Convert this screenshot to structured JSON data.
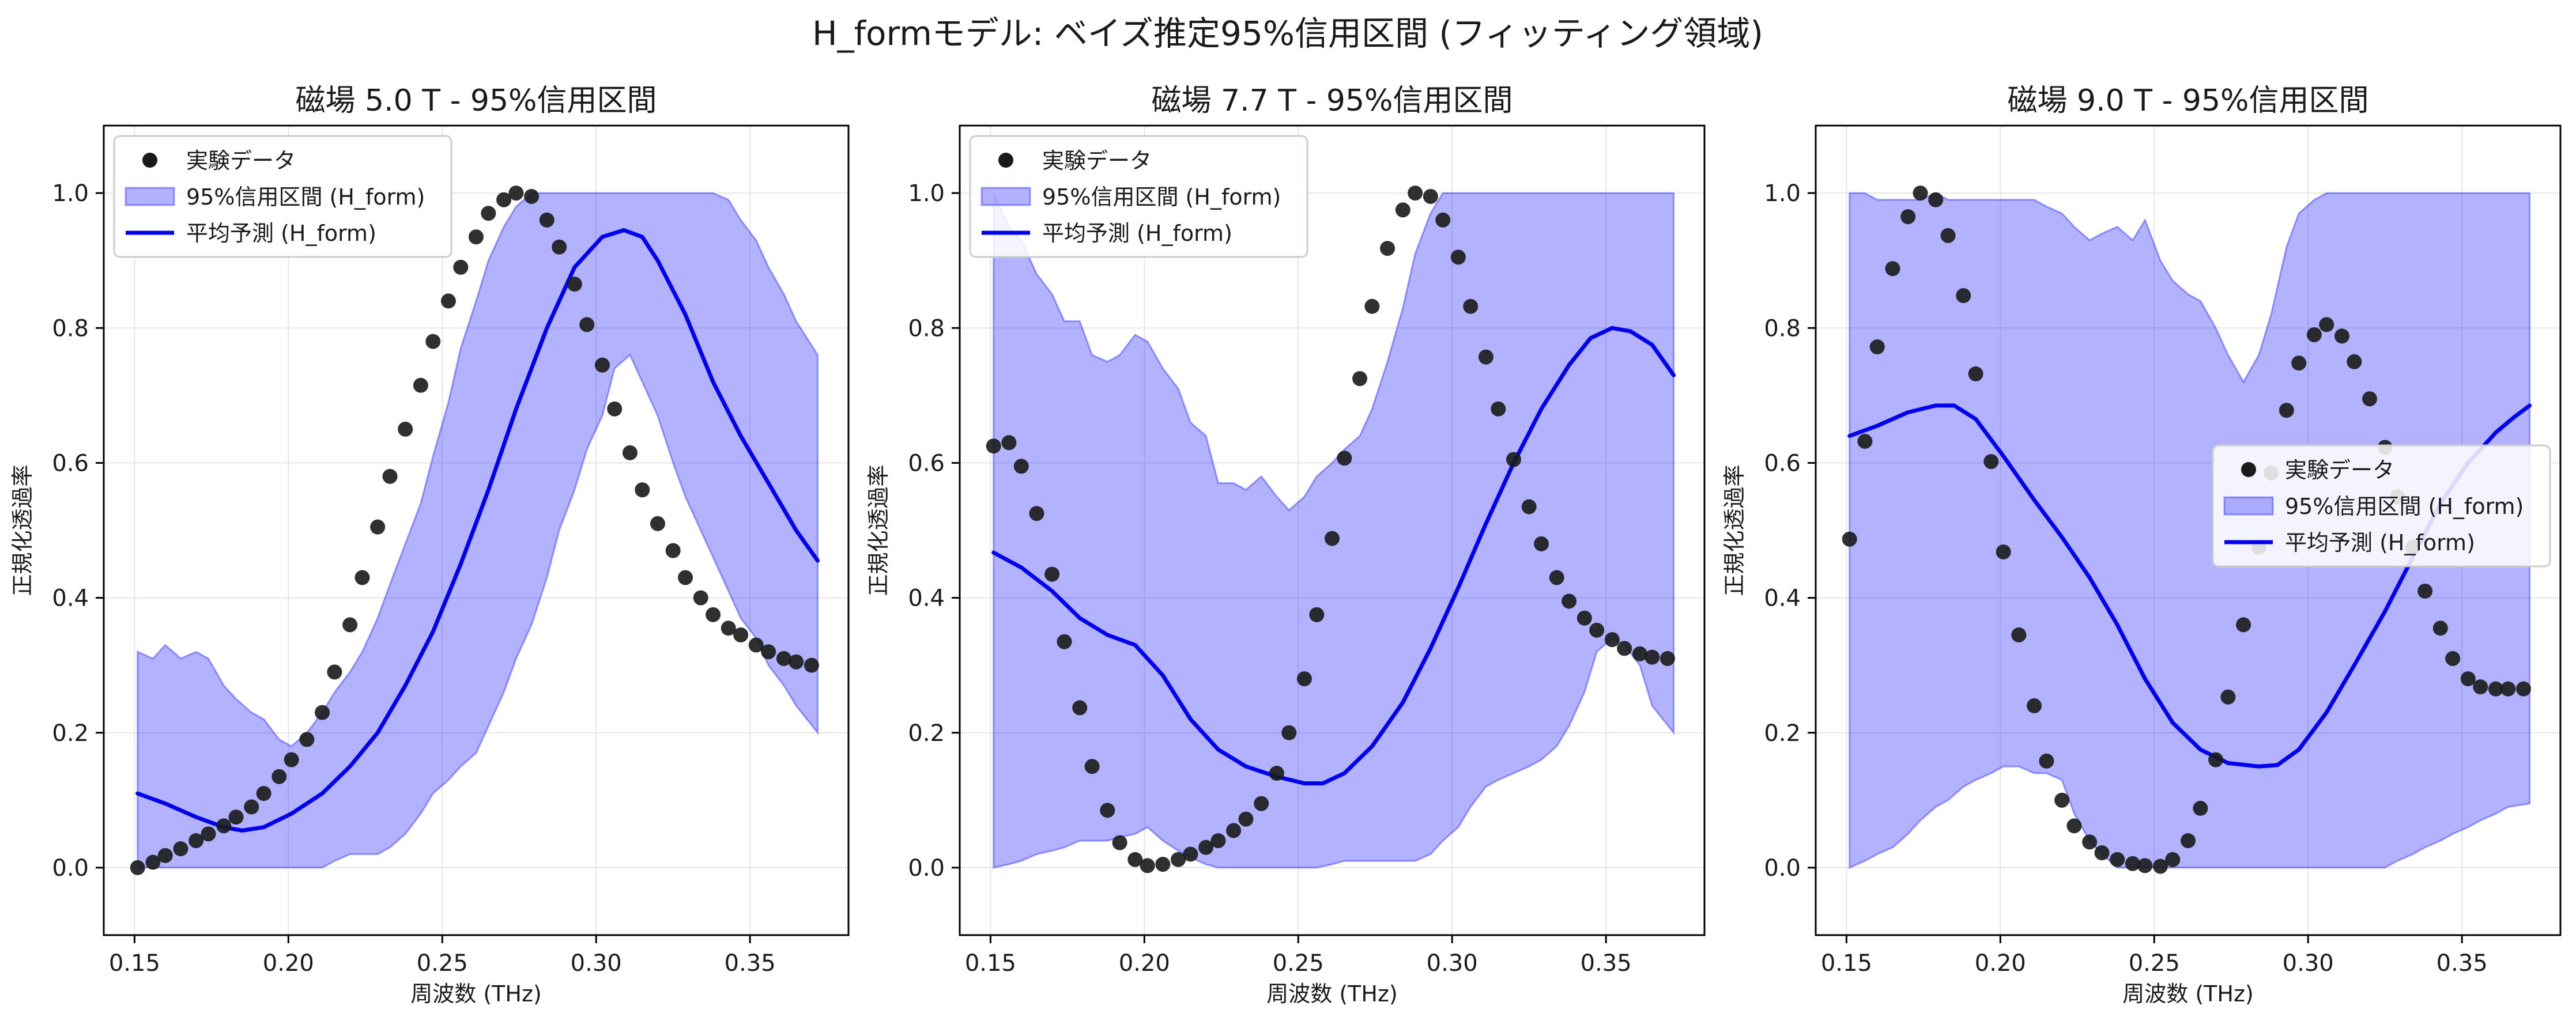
{
  "figure": {
    "suptitle": "H_formモデル: ベイズ推定95%信用区間 (フィッティング領域)"
  },
  "colors": {
    "band_fill": "#0000ff",
    "mean_line": "#0000ee",
    "points": "#1a1a1a",
    "grid": "#e6e6e6",
    "axes": "#000000"
  },
  "chart_data": [
    {
      "type": "scatter+line+area",
      "title": "磁場 5.0 T - 95%信用区間",
      "xlabel": "周波数 (THz)",
      "ylabel": "正規化透過率",
      "xlim": [
        0.14,
        0.382
      ],
      "ylim": [
        -0.1,
        1.1
      ],
      "xticks": [
        "0.15",
        "0.20",
        "0.25",
        "0.30",
        "0.35"
      ],
      "yticks": [
        "0.0",
        "0.2",
        "0.4",
        "0.6",
        "0.8",
        "1.0"
      ],
      "grid": true,
      "legend_position": "upper-left",
      "legend": [
        "実験データ",
        "95%信用区間 (H_form)",
        "平均予測 (H_form)"
      ],
      "experimental": {
        "x": [
          0.151,
          0.156,
          0.16,
          0.165,
          0.17,
          0.174,
          0.179,
          0.183,
          0.188,
          0.192,
          0.197,
          0.201,
          0.206,
          0.211,
          0.215,
          0.22,
          0.224,
          0.229,
          0.233,
          0.238,
          0.243,
          0.247,
          0.252,
          0.256,
          0.261,
          0.265,
          0.27,
          0.274,
          0.279,
          0.284,
          0.288,
          0.293,
          0.297,
          0.302,
          0.306,
          0.311,
          0.315,
          0.32,
          0.325,
          0.329,
          0.334,
          0.338,
          0.343,
          0.347,
          0.352,
          0.356,
          0.361,
          0.365,
          0.37
        ],
        "y": [
          0.0,
          0.008,
          0.018,
          0.028,
          0.04,
          0.05,
          0.062,
          0.075,
          0.09,
          0.11,
          0.135,
          0.16,
          0.19,
          0.23,
          0.29,
          0.36,
          0.43,
          0.505,
          0.58,
          0.65,
          0.715,
          0.78,
          0.84,
          0.89,
          0.935,
          0.97,
          0.99,
          1.0,
          0.995,
          0.96,
          0.92,
          0.865,
          0.805,
          0.745,
          0.68,
          0.615,
          0.56,
          0.51,
          0.47,
          0.43,
          0.4,
          0.375,
          0.355,
          0.345,
          0.33,
          0.32,
          0.31,
          0.305,
          0.3
        ]
      },
      "ci": {
        "x": [
          0.151,
          0.156,
          0.16,
          0.165,
          0.17,
          0.174,
          0.179,
          0.183,
          0.188,
          0.192,
          0.197,
          0.201,
          0.206,
          0.211,
          0.215,
          0.22,
          0.224,
          0.229,
          0.233,
          0.238,
          0.243,
          0.247,
          0.252,
          0.256,
          0.261,
          0.265,
          0.27,
          0.274,
          0.279,
          0.284,
          0.288,
          0.293,
          0.297,
          0.302,
          0.306,
          0.311,
          0.315,
          0.32,
          0.325,
          0.329,
          0.334,
          0.338,
          0.343,
          0.347,
          0.352,
          0.356,
          0.361,
          0.365,
          0.372
        ],
        "lower": [
          0.0,
          0.0,
          0.0,
          0.0,
          0.0,
          0.0,
          0.0,
          0.0,
          0.0,
          0.0,
          0.0,
          0.0,
          0.0,
          0.0,
          0.01,
          0.02,
          0.02,
          0.02,
          0.03,
          0.05,
          0.08,
          0.11,
          0.13,
          0.15,
          0.17,
          0.21,
          0.26,
          0.31,
          0.36,
          0.43,
          0.5,
          0.56,
          0.62,
          0.67,
          0.74,
          0.76,
          0.72,
          0.67,
          0.6,
          0.55,
          0.5,
          0.46,
          0.41,
          0.37,
          0.34,
          0.3,
          0.27,
          0.24,
          0.2
        ],
        "upper": [
          0.32,
          0.31,
          0.33,
          0.31,
          0.32,
          0.31,
          0.27,
          0.25,
          0.23,
          0.22,
          0.19,
          0.18,
          0.2,
          0.23,
          0.26,
          0.29,
          0.32,
          0.37,
          0.42,
          0.48,
          0.54,
          0.61,
          0.69,
          0.77,
          0.84,
          0.9,
          0.95,
          0.98,
          1.0,
          1.0,
          1.0,
          1.0,
          1.0,
          1.0,
          1.0,
          1.0,
          1.0,
          1.0,
          1.0,
          1.0,
          1.0,
          1.0,
          0.99,
          0.96,
          0.93,
          0.89,
          0.85,
          0.81,
          0.76
        ]
      },
      "mean": {
        "x": [
          0.151,
          0.16,
          0.17,
          0.179,
          0.185,
          0.192,
          0.201,
          0.211,
          0.22,
          0.229,
          0.238,
          0.247,
          0.256,
          0.265,
          0.274,
          0.284,
          0.293,
          0.302,
          0.309,
          0.315,
          0.32,
          0.329,
          0.338,
          0.347,
          0.356,
          0.365,
          0.372
        ],
        "y": [
          0.11,
          0.095,
          0.075,
          0.06,
          0.055,
          0.06,
          0.08,
          0.11,
          0.15,
          0.2,
          0.27,
          0.35,
          0.45,
          0.56,
          0.68,
          0.8,
          0.89,
          0.935,
          0.945,
          0.935,
          0.9,
          0.82,
          0.72,
          0.64,
          0.57,
          0.5,
          0.455
        ]
      }
    },
    {
      "type": "scatter+line+area",
      "title": "磁場 7.7 T - 95%信用区間",
      "xlabel": "周波数 (THz)",
      "ylabel": "正規化透過率",
      "xlim": [
        0.14,
        0.382
      ],
      "ylim": [
        -0.1,
        1.1
      ],
      "xticks": [
        "0.15",
        "0.20",
        "0.25",
        "0.30",
        "0.35"
      ],
      "yticks": [
        "0.0",
        "0.2",
        "0.4",
        "0.6",
        "0.8",
        "1.0"
      ],
      "grid": true,
      "legend_position": "upper-left",
      "legend": [
        "実験データ",
        "95%信用区間 (H_form)",
        "平均予測 (H_form)"
      ],
      "experimental": {
        "x": [
          0.151,
          0.156,
          0.16,
          0.165,
          0.17,
          0.174,
          0.179,
          0.183,
          0.188,
          0.192,
          0.197,
          0.201,
          0.206,
          0.211,
          0.215,
          0.22,
          0.224,
          0.229,
          0.233,
          0.238,
          0.243,
          0.247,
          0.252,
          0.256,
          0.261,
          0.265,
          0.27,
          0.274,
          0.279,
          0.284,
          0.288,
          0.293,
          0.297,
          0.302,
          0.306,
          0.311,
          0.315,
          0.32,
          0.325,
          0.329,
          0.334,
          0.338,
          0.343,
          0.347,
          0.352,
          0.356,
          0.361,
          0.365,
          0.37
        ],
        "y": [
          0.625,
          0.63,
          0.595,
          0.525,
          0.435,
          0.335,
          0.237,
          0.15,
          0.085,
          0.037,
          0.012,
          0.003,
          0.005,
          0.012,
          0.02,
          0.03,
          0.04,
          0.055,
          0.072,
          0.095,
          0.14,
          0.2,
          0.28,
          0.375,
          0.488,
          0.607,
          0.725,
          0.832,
          0.918,
          0.975,
          1.0,
          0.995,
          0.96,
          0.905,
          0.832,
          0.757,
          0.68,
          0.605,
          0.535,
          0.48,
          0.43,
          0.395,
          0.37,
          0.352,
          0.338,
          0.325,
          0.317,
          0.312,
          0.31
        ]
      },
      "ci": {
        "x": [
          0.151,
          0.156,
          0.16,
          0.165,
          0.17,
          0.174,
          0.179,
          0.183,
          0.188,
          0.192,
          0.197,
          0.201,
          0.206,
          0.211,
          0.215,
          0.22,
          0.224,
          0.229,
          0.233,
          0.238,
          0.243,
          0.247,
          0.252,
          0.256,
          0.261,
          0.265,
          0.27,
          0.274,
          0.279,
          0.284,
          0.288,
          0.293,
          0.297,
          0.302,
          0.306,
          0.311,
          0.315,
          0.32,
          0.325,
          0.329,
          0.334,
          0.338,
          0.343,
          0.347,
          0.352,
          0.356,
          0.361,
          0.365,
          0.372
        ],
        "lower": [
          0.0,
          0.005,
          0.01,
          0.02,
          0.025,
          0.03,
          0.04,
          0.04,
          0.04,
          0.045,
          0.05,
          0.06,
          0.04,
          0.025,
          0.015,
          0.005,
          0.0,
          0.0,
          0.0,
          0.0,
          0.0,
          0.0,
          0.0,
          0.0,
          0.005,
          0.01,
          0.01,
          0.01,
          0.01,
          0.01,
          0.01,
          0.02,
          0.04,
          0.06,
          0.09,
          0.12,
          0.13,
          0.14,
          0.15,
          0.16,
          0.18,
          0.21,
          0.26,
          0.32,
          0.34,
          0.33,
          0.3,
          0.24,
          0.2
        ],
        "upper": [
          1.0,
          0.95,
          0.93,
          0.88,
          0.85,
          0.81,
          0.81,
          0.76,
          0.75,
          0.76,
          0.79,
          0.78,
          0.74,
          0.71,
          0.66,
          0.64,
          0.57,
          0.57,
          0.56,
          0.58,
          0.55,
          0.53,
          0.55,
          0.58,
          0.6,
          0.62,
          0.64,
          0.68,
          0.75,
          0.83,
          0.91,
          0.97,
          1.0,
          1.0,
          1.0,
          1.0,
          1.0,
          1.0,
          1.0,
          1.0,
          1.0,
          1.0,
          1.0,
          1.0,
          1.0,
          1.0,
          1.0,
          1.0,
          1.0
        ]
      },
      "mean": {
        "x": [
          0.151,
          0.16,
          0.17,
          0.179,
          0.188,
          0.197,
          0.206,
          0.215,
          0.224,
          0.233,
          0.243,
          0.252,
          0.258,
          0.265,
          0.274,
          0.284,
          0.293,
          0.302,
          0.311,
          0.32,
          0.329,
          0.338,
          0.345,
          0.352,
          0.358,
          0.365,
          0.372
        ],
        "y": [
          0.467,
          0.445,
          0.41,
          0.37,
          0.345,
          0.33,
          0.285,
          0.22,
          0.175,
          0.15,
          0.135,
          0.125,
          0.125,
          0.14,
          0.18,
          0.245,
          0.325,
          0.415,
          0.51,
          0.6,
          0.68,
          0.745,
          0.785,
          0.8,
          0.795,
          0.775,
          0.73
        ]
      }
    },
    {
      "type": "scatter+line+area",
      "title": "磁場 9.0 T - 95%信用区間",
      "xlabel": "周波数 (THz)",
      "ylabel": "正規化透過率",
      "xlim": [
        0.14,
        0.382
      ],
      "ylim": [
        -0.1,
        1.1
      ],
      "xticks": [
        "0.15",
        "0.20",
        "0.25",
        "0.30",
        "0.35"
      ],
      "yticks": [
        "0.0",
        "0.2",
        "0.4",
        "0.6",
        "0.8",
        "1.0"
      ],
      "grid": true,
      "legend_position": "center-right",
      "legend": [
        "実験データ",
        "95%信用区間 (H_form)",
        "平均予測 (H_form)"
      ],
      "experimental": {
        "x": [
          0.151,
          0.156,
          0.16,
          0.165,
          0.17,
          0.174,
          0.179,
          0.183,
          0.188,
          0.192,
          0.197,
          0.201,
          0.206,
          0.211,
          0.215,
          0.22,
          0.224,
          0.229,
          0.233,
          0.238,
          0.243,
          0.247,
          0.252,
          0.256,
          0.261,
          0.265,
          0.27,
          0.274,
          0.279,
          0.284,
          0.288,
          0.293,
          0.297,
          0.302,
          0.306,
          0.311,
          0.315,
          0.32,
          0.325,
          0.329,
          0.334,
          0.338,
          0.343,
          0.347,
          0.352,
          0.356,
          0.361,
          0.365,
          0.37
        ],
        "y": [
          0.487,
          0.632,
          0.772,
          0.888,
          0.965,
          1.0,
          0.99,
          0.937,
          0.848,
          0.732,
          0.602,
          0.468,
          0.345,
          0.24,
          0.158,
          0.1,
          0.062,
          0.038,
          0.022,
          0.012,
          0.006,
          0.003,
          0.002,
          0.012,
          0.04,
          0.088,
          0.16,
          0.253,
          0.36,
          0.475,
          0.585,
          0.678,
          0.748,
          0.79,
          0.805,
          0.788,
          0.75,
          0.695,
          0.623,
          0.55,
          0.475,
          0.41,
          0.355,
          0.31,
          0.28,
          0.268,
          0.265,
          0.265,
          0.265
        ]
      },
      "ci": {
        "x": [
          0.151,
          0.156,
          0.16,
          0.165,
          0.17,
          0.174,
          0.179,
          0.183,
          0.188,
          0.192,
          0.197,
          0.201,
          0.206,
          0.211,
          0.215,
          0.22,
          0.224,
          0.229,
          0.233,
          0.238,
          0.243,
          0.247,
          0.252,
          0.256,
          0.261,
          0.265,
          0.27,
          0.274,
          0.279,
          0.284,
          0.288,
          0.293,
          0.297,
          0.302,
          0.306,
          0.311,
          0.315,
          0.32,
          0.325,
          0.329,
          0.334,
          0.338,
          0.343,
          0.347,
          0.352,
          0.356,
          0.361,
          0.365,
          0.372
        ],
        "lower": [
          0.0,
          0.01,
          0.02,
          0.03,
          0.05,
          0.07,
          0.09,
          0.1,
          0.12,
          0.13,
          0.14,
          0.15,
          0.15,
          0.14,
          0.14,
          0.13,
          0.08,
          0.04,
          0.02,
          0.0,
          0.0,
          0.0,
          0.0,
          0.0,
          0.0,
          0.0,
          0.0,
          0.0,
          0.0,
          0.0,
          0.0,
          0.0,
          0.0,
          0.0,
          0.0,
          0.0,
          0.0,
          0.0,
          0.0,
          0.01,
          0.02,
          0.03,
          0.04,
          0.05,
          0.06,
          0.07,
          0.08,
          0.09,
          0.095
        ],
        "upper": [
          1.0,
          1.0,
          0.99,
          0.99,
          0.99,
          0.99,
          1.0,
          0.99,
          0.99,
          0.99,
          0.99,
          0.99,
          0.99,
          0.99,
          0.98,
          0.97,
          0.95,
          0.93,
          0.94,
          0.95,
          0.93,
          0.96,
          0.9,
          0.87,
          0.85,
          0.84,
          0.8,
          0.76,
          0.72,
          0.76,
          0.82,
          0.92,
          0.97,
          0.99,
          1.0,
          1.0,
          1.0,
          1.0,
          1.0,
          1.0,
          1.0,
          1.0,
          1.0,
          1.0,
          1.0,
          1.0,
          1.0,
          1.0,
          1.0
        ]
      },
      "mean": {
        "x": [
          0.151,
          0.16,
          0.17,
          0.179,
          0.185,
          0.192,
          0.201,
          0.211,
          0.22,
          0.229,
          0.238,
          0.247,
          0.256,
          0.265,
          0.274,
          0.284,
          0.29,
          0.297,
          0.306,
          0.315,
          0.325,
          0.334,
          0.343,
          0.352,
          0.361,
          0.367,
          0.372
        ],
        "y": [
          0.64,
          0.655,
          0.675,
          0.685,
          0.685,
          0.665,
          0.61,
          0.545,
          0.49,
          0.43,
          0.36,
          0.28,
          0.215,
          0.175,
          0.155,
          0.15,
          0.152,
          0.175,
          0.23,
          0.3,
          0.38,
          0.46,
          0.54,
          0.6,
          0.645,
          0.668,
          0.685
        ]
      }
    }
  ]
}
